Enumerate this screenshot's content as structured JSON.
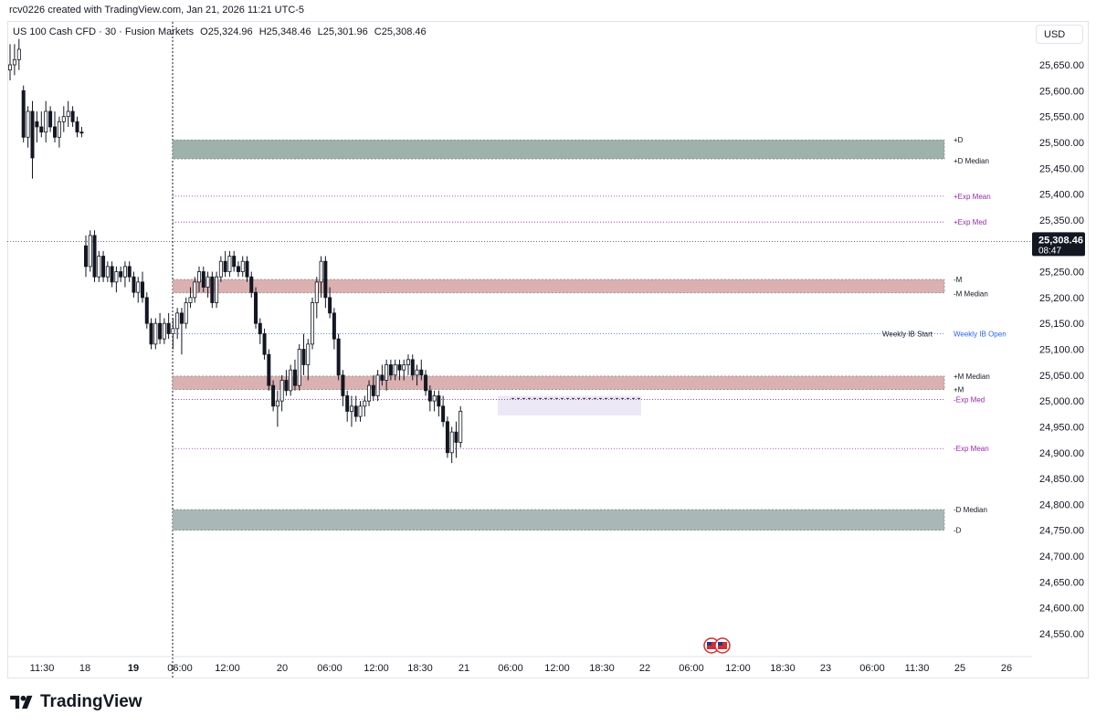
{
  "header": {
    "credit": "rcv0226 created with TradingView.com, Jan 21, 2026 11:21 UTC-5"
  },
  "symbol": {
    "name": "US 100 Cash CFD · 30 · Fusion Markets",
    "open": "O25,324.96",
    "high": "H25,348.46",
    "low": "L25,301.96",
    "close": "C25,308.46"
  },
  "currency_button": "USD",
  "price_axis": {
    "ticks": [
      25650,
      25600,
      25550,
      25500,
      25450,
      25400,
      25350,
      25300,
      25250,
      25200,
      25150,
      25100,
      25050,
      25000,
      24950,
      24900,
      24850,
      24800,
      24750,
      24700,
      24650,
      24600,
      24550
    ],
    "tick_labels": [
      "25,650.00",
      "25,600.00",
      "25,550.00",
      "25,500.00",
      "25,450.00",
      "25,400.00",
      "25,350.00",
      "25,300.00",
      "25,250.00",
      "25,200.00",
      "25,150.00",
      "25,100.00",
      "25,050.00",
      "25,000.00",
      "24,950.00",
      "24,900.00",
      "24,850.00",
      "24,800.00",
      "24,750.00",
      "24,700.00",
      "24,650.00",
      "24,600.00",
      "24,550.00"
    ],
    "current_price": "25,308.46",
    "countdown": "08:47"
  },
  "time_axis": {
    "labels": [
      "11:30",
      "18",
      "19",
      "06:00",
      "12:00",
      "20",
      "06:00",
      "12:00",
      "18:30",
      "21",
      "06:00",
      "12:00",
      "18:30",
      "22",
      "06:00",
      "12:00",
      "18:30",
      "23",
      "06:00",
      "11:30",
      "25",
      "26"
    ],
    "bold": [
      false,
      false,
      true,
      false,
      false,
      false,
      false,
      false,
      false,
      false,
      false,
      false,
      false,
      false,
      false,
      false,
      false,
      false,
      false,
      false,
      false,
      false
    ]
  },
  "chart_data": {
    "type": "candlestick",
    "title": "US 100 Cash CFD · 30 · Fusion Markets",
    "ylim": [
      24510,
      25700
    ],
    "current_price": 25308.46,
    "zones": [
      {
        "name": "+D",
        "low": 25468,
        "high": 25505,
        "color": "#9fb1ab"
      },
      {
        "name": "-M",
        "low": 25209,
        "high": 25235,
        "color": "#dbb0b0"
      },
      {
        "name": "+M",
        "low": 25022,
        "high": 25048,
        "color": "#dbb0b0"
      },
      {
        "name": "-D",
        "low": 24750,
        "high": 24790,
        "color": "#a9b8b6"
      }
    ],
    "levels": [
      {
        "label": "+D",
        "value": 25505,
        "color": "#131722"
      },
      {
        "label": "+D Median",
        "value": 25465,
        "color": "#131722"
      },
      {
        "label": "+Exp Mean",
        "value": 25396,
        "color": "#9c27b0"
      },
      {
        "label": "+Exp Med",
        "value": 25346,
        "color": "#9c27b0"
      },
      {
        "label": "-M",
        "value": 25235,
        "color": "#131722"
      },
      {
        "label": "-M Median",
        "value": 25208,
        "color": "#131722"
      },
      {
        "label": "Weekly IB Open",
        "value": 25130,
        "color": "#2962ff"
      },
      {
        "label": "+M Median",
        "value": 25048,
        "color": "#131722"
      },
      {
        "label": "+M",
        "value": 25022,
        "color": "#131722"
      },
      {
        "label": "-Exp Med",
        "value": 25003,
        "color": "#9c27b0"
      },
      {
        "label": "-Exp Mean",
        "value": 24908,
        "color": "#9c27b0"
      },
      {
        "label": "-D Median",
        "value": 24790,
        "color": "#131722"
      },
      {
        "label": "-D",
        "value": 24750,
        "color": "#131722"
      }
    ],
    "weekly_ib_start_label": "Weekly IB Start",
    "candles": [
      [
        25640,
        25690,
        25620,
        25650
      ],
      [
        25650,
        25690,
        25630,
        25660
      ],
      [
        25660,
        25700,
        25640,
        25680
      ],
      [
        25600,
        25610,
        25500,
        25510
      ],
      [
        25510,
        25570,
        25490,
        25560
      ],
      [
        25560,
        25580,
        25430,
        25470
      ],
      [
        25540,
        25560,
        25500,
        25530
      ],
      [
        25530,
        25560,
        25510,
        25520
      ],
      [
        25520,
        25580,
        25500,
        25560
      ],
      [
        25560,
        25570,
        25520,
        25530
      ],
      [
        25530,
        25560,
        25500,
        25510
      ],
      [
        25510,
        25550,
        25490,
        25540
      ],
      [
        25540,
        25570,
        25520,
        25550
      ],
      [
        25550,
        25580,
        25530,
        25560
      ],
      [
        25560,
        25570,
        25530,
        25540
      ],
      [
        25540,
        25550,
        25510,
        25520
      ],
      [
        25520,
        25530,
        25510,
        25518
      ],
      [
        25300,
        25320,
        25240,
        25260
      ],
      [
        25260,
        25330,
        25250,
        25320
      ],
      [
        25320,
        25330,
        25230,
        25240
      ],
      [
        25240,
        25290,
        25230,
        25280
      ],
      [
        25280,
        25290,
        25230,
        25240
      ],
      [
        25240,
        25270,
        25230,
        25260
      ],
      [
        25260,
        25270,
        25220,
        25230
      ],
      [
        25230,
        25260,
        25210,
        25250
      ],
      [
        25250,
        25260,
        25230,
        25240
      ],
      [
        25240,
        25270,
        25220,
        25260
      ],
      [
        25260,
        25270,
        25230,
        25240
      ],
      [
        25240,
        25250,
        25200,
        25210
      ],
      [
        25210,
        25240,
        25190,
        25230
      ],
      [
        25230,
        25250,
        25190,
        25200
      ],
      [
        25200,
        25210,
        25140,
        25150
      ],
      [
        25150,
        25160,
        25100,
        25110
      ],
      [
        25110,
        25160,
        25100,
        25150
      ],
      [
        25150,
        25170,
        25110,
        25120
      ],
      [
        25120,
        25160,
        25110,
        25150
      ],
      [
        25150,
        25170,
        25120,
        25130
      ],
      [
        25130,
        25160,
        25100,
        25140
      ],
      [
        25140,
        25180,
        25120,
        25170
      ],
      [
        25170,
        25180,
        25090,
        25150
      ],
      [
        25150,
        25200,
        25140,
        25190
      ],
      [
        25190,
        25220,
        25180,
        25200
      ],
      [
        25200,
        25240,
        25190,
        25230
      ],
      [
        25230,
        25260,
        25210,
        25250
      ],
      [
        25250,
        25260,
        25210,
        25220
      ],
      [
        25220,
        25250,
        25200,
        25240
      ],
      [
        25240,
        25250,
        25180,
        25190
      ],
      [
        25190,
        25250,
        25180,
        25240
      ],
      [
        25240,
        25280,
        25230,
        25270
      ],
      [
        25270,
        25290,
        25240,
        25250
      ],
      [
        25250,
        25290,
        25240,
        25280
      ],
      [
        25280,
        25290,
        25250,
        25260
      ],
      [
        25260,
        25270,
        25240,
        25250
      ],
      [
        25250,
        25280,
        25240,
        25270
      ],
      [
        25270,
        25280,
        25230,
        25240
      ],
      [
        25240,
        25250,
        25200,
        25210
      ],
      [
        25210,
        25220,
        25140,
        25150
      ],
      [
        25150,
        25160,
        25110,
        25130
      ],
      [
        25130,
        25140,
        25080,
        25090
      ],
      [
        25090,
        25100,
        25020,
        25030
      ],
      [
        25030,
        25040,
        24980,
        24990
      ],
      [
        24990,
        25020,
        24950,
        25000
      ],
      [
        25000,
        25050,
        24980,
        25040
      ],
      [
        25040,
        25060,
        25010,
        25020
      ],
      [
        25020,
        25070,
        25010,
        25060
      ],
      [
        25060,
        25080,
        25020,
        25030
      ],
      [
        25030,
        25110,
        25020,
        25100
      ],
      [
        25100,
        25130,
        25050,
        25070
      ],
      [
        25070,
        25120,
        25040,
        25110
      ],
      [
        25110,
        25200,
        25100,
        25190
      ],
      [
        25190,
        25240,
        25160,
        25230
      ],
      [
        25230,
        25280,
        25200,
        25270
      ],
      [
        25270,
        25280,
        25180,
        25200
      ],
      [
        25200,
        25220,
        25160,
        25170
      ],
      [
        25170,
        25180,
        25100,
        25120
      ],
      [
        25120,
        25130,
        25040,
        25050
      ],
      [
        25050,
        25060,
        24990,
        25010
      ],
      [
        25010,
        25020,
        24960,
        24980
      ],
      [
        24980,
        25010,
        24950,
        24990
      ],
      [
        24990,
        25010,
        24960,
        24970
      ],
      [
        24970,
        25000,
        24960,
        24990
      ],
      [
        24990,
        25010,
        24970,
        25000
      ],
      [
        25000,
        25040,
        24990,
        25030
      ],
      [
        25030,
        25050,
        25000,
        25010
      ],
      [
        25010,
        25060,
        25000,
        25050
      ],
      [
        25050,
        25070,
        25030,
        25040
      ],
      [
        25040,
        25080,
        25020,
        25070
      ],
      [
        25070,
        25080,
        25040,
        25050
      ],
      [
        25050,
        25080,
        25040,
        25070
      ],
      [
        25070,
        25080,
        25040,
        25060
      ],
      [
        25060,
        25080,
        25040,
        25070
      ],
      [
        25070,
        25090,
        25050,
        25080
      ],
      [
        25080,
        25090,
        25040,
        25050
      ],
      [
        25050,
        25070,
        25030,
        25060
      ],
      [
        25060,
        25080,
        25040,
        25050
      ],
      [
        25050,
        25060,
        25010,
        25020
      ],
      [
        25020,
        25030,
        24980,
        25000
      ],
      [
        25000,
        25020,
        24980,
        25010
      ],
      [
        25010,
        25020,
        24970,
        24990
      ],
      [
        24990,
        25010,
        24950,
        24960
      ],
      [
        24960,
        24970,
        24890,
        24900
      ],
      [
        24900,
        24950,
        24880,
        24940
      ],
      [
        24940,
        24960,
        24890,
        24920
      ],
      [
        24920,
        24990,
        24910,
        24980
      ],
      [
        24980,
        25050,
        24970,
        25040
      ],
      [
        25040,
        25200,
        25030,
        25190
      ],
      [
        25190,
        25250,
        25180,
        25230
      ],
      [
        25230,
        25330,
        25220,
        25320
      ],
      [
        25320,
        25350,
        25300,
        25340
      ],
      [
        25325,
        25348,
        25302,
        25308
      ]
    ]
  }
}
